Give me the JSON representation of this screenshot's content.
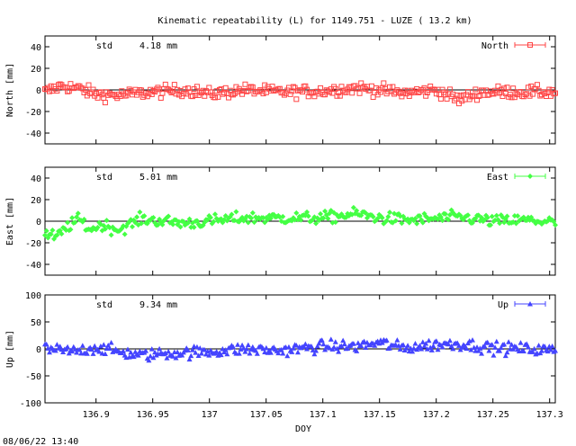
{
  "chart_data": {
    "type": "scatter",
    "title": "Kinematic repeatability (L) for 1149.751 - LUZE  ( 13.2 km)",
    "timestamp": "08/06/22 13:40",
    "xlabel": "DOY",
    "x_ticks": [
      "136.9",
      "136.95",
      "137",
      "137.05",
      "137.1",
      "137.15",
      "137.2",
      "137.25",
      "137.3"
    ],
    "x_tick_values": [
      136.9,
      136.95,
      137.0,
      137.05,
      137.1,
      137.15,
      137.2,
      137.25,
      137.3
    ],
    "xlim": [
      136.855,
      137.305
    ],
    "panels": [
      {
        "key": "north",
        "ylabel": "North [mm]",
        "legend": "North",
        "marker": "square",
        "color": "#ff4444",
        "std_label": "std",
        "std_value": "4.18 mm",
        "ylim": [
          -50,
          50
        ],
        "y_ticks": [
          "40",
          "20",
          "0",
          "-20",
          "-40"
        ],
        "y_tick_values": [
          40,
          20,
          0,
          -20,
          -40
        ],
        "trend": {
          "x": [
            136.855,
            136.87,
            136.885,
            136.9,
            136.92,
            136.95,
            136.98,
            137.0,
            137.03,
            137.06,
            137.1,
            137.13,
            137.15,
            137.17,
            137.2,
            137.22,
            137.24,
            137.27,
            137.305
          ],
          "y": [
            -2,
            4,
            1,
            -4,
            -5,
            -2,
            0,
            -4,
            0,
            -2,
            -1,
            2,
            0,
            -3,
            0,
            -9,
            -2,
            -2,
            -2
          ]
        },
        "noise_amp": 4
      },
      {
        "key": "east",
        "ylabel": "East [mm]",
        "legend": "East",
        "marker": "diamond",
        "color": "#44ff44",
        "std_label": "std",
        "std_value": "5.01 mm",
        "ylim": [
          -50,
          50
        ],
        "y_ticks": [
          "40",
          "20",
          "0",
          "-20",
          "-40"
        ],
        "y_tick_values": [
          40,
          20,
          0,
          -20,
          -40
        ],
        "trend": {
          "x": [
            136.855,
            136.865,
            136.875,
            136.885,
            136.895,
            136.905,
            136.92,
            136.94,
            136.96,
            136.98,
            137.0,
            137.03,
            137.06,
            137.1,
            137.13,
            137.15,
            137.18,
            137.22,
            137.25,
            137.28,
            137.305
          ],
          "y": [
            -12,
            -15,
            -5,
            2,
            -8,
            -3,
            -8,
            2,
            0,
            -2,
            0,
            3,
            3,
            3,
            7,
            3,
            1,
            4,
            0,
            1,
            -1
          ]
        },
        "noise_amp": 4
      },
      {
        "key": "up",
        "ylabel": "Up [mm]",
        "legend": "Up",
        "marker": "triangle",
        "color": "#4444ff",
        "std_label": "std",
        "std_value": "9.34 mm",
        "ylim": [
          -100,
          100
        ],
        "y_ticks": [
          "100",
          "50",
          "0",
          "-50",
          "-100"
        ],
        "y_tick_values": [
          100,
          50,
          0,
          -50,
          -100
        ],
        "trend": {
          "x": [
            136.855,
            136.88,
            136.9,
            136.92,
            136.94,
            136.96,
            137.0,
            137.03,
            137.06,
            137.1,
            137.13,
            137.15,
            137.17,
            137.2,
            137.22,
            137.25,
            137.28,
            137.305
          ],
          "y": [
            0,
            -5,
            3,
            -5,
            -12,
            -8,
            -5,
            0,
            -3,
            5,
            5,
            12,
            2,
            8,
            10,
            2,
            0,
            -3
          ]
        },
        "noise_amp": 8
      }
    ]
  }
}
